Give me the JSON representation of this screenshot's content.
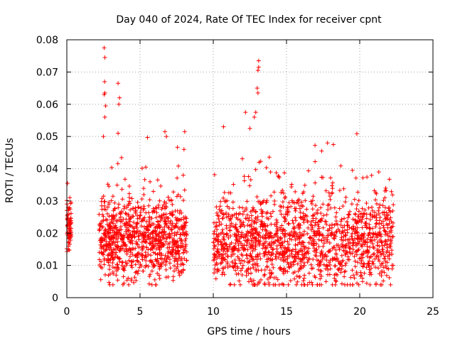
{
  "chart_data": {
    "type": "scatter",
    "title": "Day 040 of 2024, Rate Of TEC Index for receiver cpnt",
    "xlabel": "GPS time / hours",
    "ylabel": "ROTI / TECUs",
    "xlim": [
      0,
      25
    ],
    "ylim": [
      0,
      0.08
    ],
    "xticks": [
      0,
      5,
      10,
      15,
      20,
      25
    ],
    "xtick_labels": [
      "0",
      "5",
      "10",
      "15",
      "20",
      "25"
    ],
    "yticks": [
      0,
      0.01,
      0.02,
      0.03,
      0.04,
      0.05,
      0.06,
      0.07,
      0.08
    ],
    "ytick_labels": [
      "0",
      "0.01",
      "0.02",
      "0.03",
      "0.04",
      "0.05",
      "0.06",
      "0.07",
      "0.08"
    ],
    "grid": true,
    "marker": "+",
    "color": "#ff0000",
    "series": [
      {
        "name": "ROTI",
        "segments": [
          {
            "x_start": 0.0,
            "x_end": 0.3,
            "baseline": 0.022,
            "spread": 0.02,
            "count": 70
          },
          {
            "x_start": 2.2,
            "x_end": 8.2,
            "baseline": 0.018,
            "spread": 0.028,
            "count": 900
          },
          {
            "x_start": 10.0,
            "x_end": 22.3,
            "baseline": 0.017,
            "spread": 0.03,
            "count": 1500
          }
        ],
        "peaks": [
          {
            "x": 2.55,
            "y": 0.0775
          },
          {
            "x": 2.6,
            "y": 0.0745
          },
          {
            "x": 2.58,
            "y": 0.067
          },
          {
            "x": 2.6,
            "y": 0.0635
          },
          {
            "x": 2.55,
            "y": 0.063
          },
          {
            "x": 2.65,
            "y": 0.0595
          },
          {
            "x": 2.6,
            "y": 0.056
          },
          {
            "x": 2.5,
            "y": 0.05
          },
          {
            "x": 3.5,
            "y": 0.0665
          },
          {
            "x": 3.6,
            "y": 0.062
          },
          {
            "x": 3.55,
            "y": 0.06
          },
          {
            "x": 3.5,
            "y": 0.051
          },
          {
            "x": 6.7,
            "y": 0.0515
          },
          {
            "x": 6.8,
            "y": 0.05
          },
          {
            "x": 8.05,
            "y": 0.0515
          },
          {
            "x": 8.0,
            "y": 0.046
          },
          {
            "x": 7.95,
            "y": 0.038
          },
          {
            "x": 12.2,
            "y": 0.0575
          },
          {
            "x": 12.9,
            "y": 0.0575
          },
          {
            "x": 12.8,
            "y": 0.056
          },
          {
            "x": 13.1,
            "y": 0.0735
          },
          {
            "x": 13.05,
            "y": 0.0705
          },
          {
            "x": 13.1,
            "y": 0.0715
          },
          {
            "x": 13.0,
            "y": 0.065
          },
          {
            "x": 13.05,
            "y": 0.0635
          },
          {
            "x": 10.7,
            "y": 0.053
          },
          {
            "x": 12.5,
            "y": 0.0525
          },
          {
            "x": 17.8,
            "y": 0.048
          },
          {
            "x": 18.2,
            "y": 0.0475
          },
          {
            "x": 17.4,
            "y": 0.0455
          },
          {
            "x": 21.3,
            "y": 0.039
          },
          {
            "x": 19.5,
            "y": 0.0395
          },
          {
            "x": 22.0,
            "y": 0.028
          },
          {
            "x": 17.7,
            "y": 0.005
          },
          {
            "x": 3.9,
            "y": 0.0045
          },
          {
            "x": 13.0,
            "y": 0.004
          }
        ]
      }
    ]
  }
}
